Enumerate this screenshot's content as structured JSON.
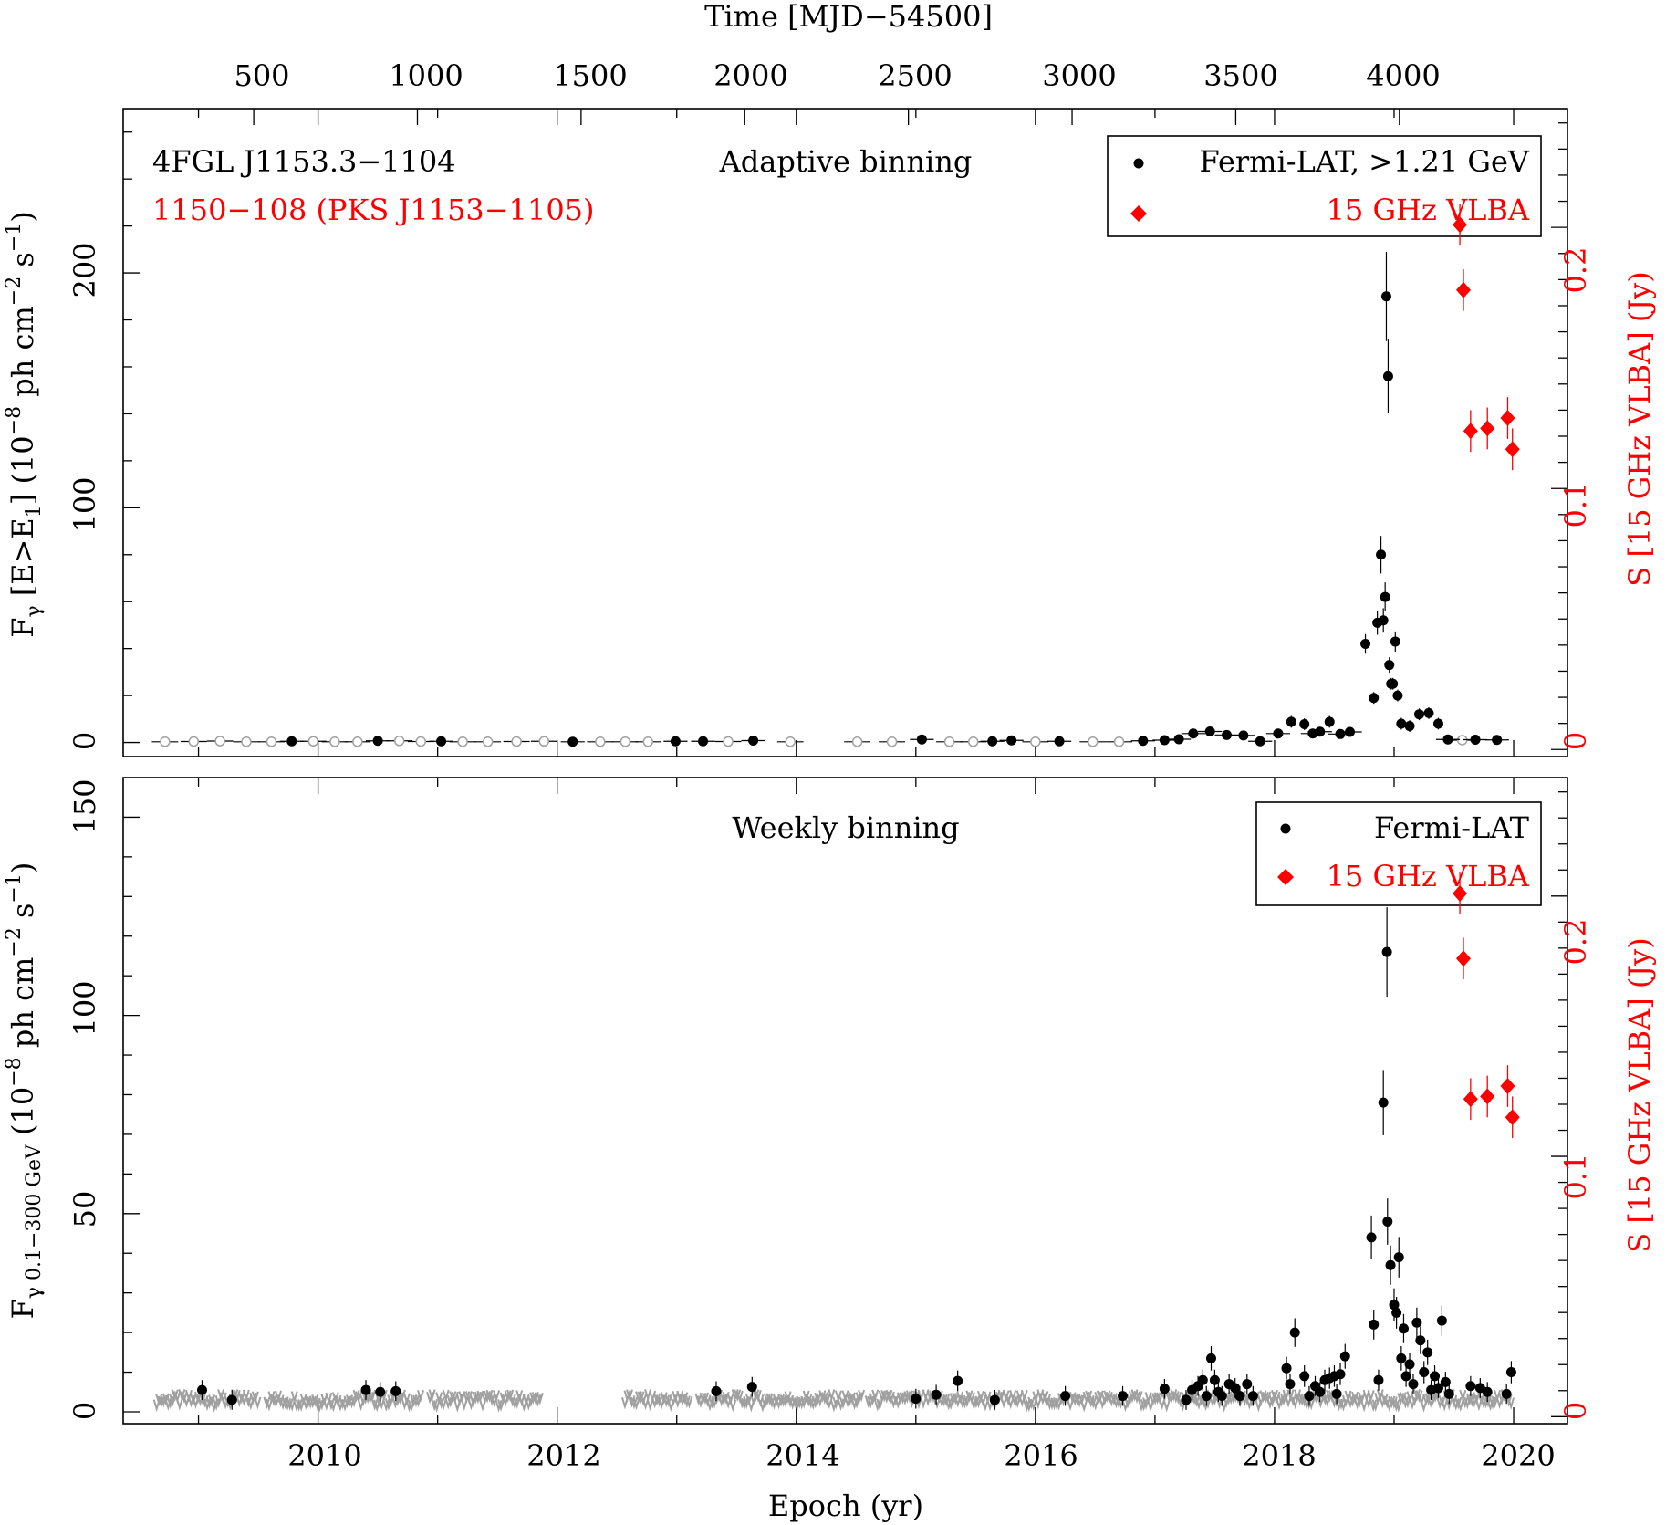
{
  "figure": {
    "top_axis_label": "Time [MJD−54500]",
    "top_ticks": [
      "500",
      "1000",
      "1500",
      "2000",
      "2500",
      "3000",
      "3500",
      "4000"
    ],
    "x_axis_label": "Epoch (yr)",
    "x_ticks": [
      "2010",
      "2012",
      "2014",
      "2016",
      "2018",
      "2020"
    ]
  },
  "colors": {
    "gamma": "#000000",
    "upper_limit": "#a0a0a0",
    "vlba": "#ff0000"
  },
  "chart_data": [
    {
      "type": "scatter",
      "panel": "top",
      "source_name": "4FGL J1153.3−1104",
      "radio_name": "1150−108 (PKS J1153−1105)",
      "binning_label": "Adaptive binning",
      "ylabel_main": "F",
      "ylabel_sub": "γ",
      "ylabel_rest": " [E>E",
      "ylabel_sub2": "1",
      "ylabel_rest2": "] (10",
      "ylabel_sup": "−8",
      "ylabel_rest3": " ph cm",
      "ylabel_sup2": "−2",
      "ylabel_rest4": " s",
      "ylabel_sup3": "−1",
      "ylabel_end": ")",
      "y2label": "S [15 GHz VLBA] (Jy)",
      "xlim": [
        2008.37,
        2020.45
      ],
      "ylim": [
        -6,
        270
      ],
      "y2lim": [
        -0.0027,
        0.2455
      ],
      "y_ticks": [
        "0",
        "100",
        "200"
      ],
      "y2_ticks": [
        "0",
        "0.1",
        "0.2"
      ],
      "legend": [
        "Fermi-LAT, >1.21 GeV",
        "15 GHz VLBA"
      ],
      "series": [
        {
          "name": "Fermi-LAT, >1.21 GeV",
          "x": [
            2009.78,
            2010.5,
            2011.03,
            2012.13,
            2012.99,
            2013.22,
            2013.64,
            2015.05,
            2015.64,
            2015.8,
            2016.2,
            2016.9,
            2017.08,
            2017.2,
            2017.32,
            2017.46,
            2017.6,
            2017.74,
            2017.88,
            2018.03,
            2018.14,
            2018.25,
            2018.32,
            2018.38,
            2018.46,
            2018.55,
            2018.63,
            2018.76,
            2018.83,
            2018.86,
            2018.89,
            2018.91,
            2018.925,
            2018.935,
            2018.95,
            2018.96,
            2018.975,
            2018.99,
            2019.01,
            2019.03,
            2019.06,
            2019.13,
            2019.21,
            2019.29,
            2019.37,
            2019.45,
            2019.68,
            2019.86
          ],
          "y": [
            0.5,
            0.7,
            0.5,
            0.3,
            0.5,
            0.5,
            0.8,
            1.3,
            0.5,
            0.9,
            0.5,
            0.7,
            1.0,
            1.4,
            3.8,
            4.7,
            3.2,
            3.0,
            0.5,
            3.8,
            8.8,
            7.8,
            3.8,
            4.6,
            8.8,
            3.6,
            4.5,
            42,
            19,
            51,
            80,
            52,
            62,
            190,
            156,
            33,
            25,
            25,
            43,
            20,
            8,
            7,
            12,
            12.5,
            8,
            1.3,
            1.2,
            1.1
          ]
        },
        {
          "name": "upper limits",
          "x": [
            2008.72,
            2008.96,
            2009.18,
            2009.4,
            2009.61,
            2009.96,
            2010.14,
            2010.33,
            2010.68,
            2010.86,
            2011.21,
            2011.42,
            2011.66,
            2011.89,
            2012.36,
            2012.57,
            2012.76,
            2013.43,
            2013.95,
            2014.51,
            2014.8,
            2015.28,
            2015.48,
            2016.0,
            2016.48,
            2016.7,
            2019.57
          ],
          "y": [
            0.3,
            0.4,
            0.6,
            0.3,
            0.3,
            0.5,
            0.3,
            0.3,
            0.7,
            0.4,
            0.3,
            0.3,
            0.4,
            0.5,
            0.3,
            0.3,
            0.3,
            0.4,
            0.3,
            0.3,
            0.3,
            0.3,
            0.3,
            0.3,
            0.3,
            0.3,
            1.0
          ]
        },
        {
          "name": "15 GHz VLBA",
          "x": [
            2019.55,
            2019.58,
            2019.64,
            2019.78,
            2019.95,
            2019.99
          ],
          "y": [
            0.201,
            0.176,
            0.122,
            0.123,
            0.127,
            0.115
          ]
        }
      ]
    },
    {
      "type": "scatter",
      "panel": "bottom",
      "binning_label": "Weekly binning",
      "ylabel_main": "F",
      "ylabel_sub": "γ 0.1−300 GeV",
      "ylabel_rest": " (10",
      "ylabel_sup": "−8",
      "ylabel_rest3": " ph cm",
      "ylabel_sup2": "−2",
      "ylabel_rest4": " s",
      "ylabel_sup3": "−1",
      "ylabel_end": ")",
      "y2label": "S [15 GHz VLBA] (Jy)",
      "xlim": [
        2008.37,
        2020.45
      ],
      "ylim": [
        -3,
        160
      ],
      "y2lim": [
        -0.0027,
        0.2455
      ],
      "y_ticks": [
        "0",
        "50",
        "100",
        "150"
      ],
      "y2_ticks": [
        "0",
        "0.1",
        "0.2"
      ],
      "legend": [
        "Fermi-LAT",
        "15 GHz VLBA"
      ],
      "series": [
        {
          "name": "Fermi-LAT",
          "x": [
            2009.03,
            2009.28,
            2010.4,
            2010.52,
            2010.65,
            2013.33,
            2013.63,
            2015.0,
            2015.17,
            2015.35,
            2015.66,
            2016.25,
            2016.73,
            2017.08,
            2017.26,
            2017.31,
            2017.36,
            2017.4,
            2017.43,
            2017.47,
            2017.5,
            2017.53,
            2017.56,
            2017.62,
            2017.67,
            2017.71,
            2017.77,
            2017.82,
            2018.1,
            2018.13,
            2018.17,
            2018.25,
            2018.29,
            2018.34,
            2018.38,
            2018.42,
            2018.46,
            2018.5,
            2018.52,
            2018.55,
            2018.59,
            2018.81,
            2018.83,
            2018.87,
            2018.91,
            2018.94,
            2018.945,
            2018.97,
            2019.0,
            2019.02,
            2019.04,
            2019.06,
            2019.08,
            2019.1,
            2019.13,
            2019.16,
            2019.19,
            2019.22,
            2019.25,
            2019.28,
            2019.31,
            2019.34,
            2019.37,
            2019.4,
            2019.43,
            2019.46,
            2019.64,
            2019.72,
            2019.78,
            2019.94,
            2019.98
          ],
          "y": [
            5.5,
            3,
            5.5,
            5,
            5.2,
            5.2,
            6.3,
            3.3,
            4.3,
            7.8,
            3,
            4,
            4,
            5.8,
            3,
            5.5,
            6.5,
            8,
            4,
            13.5,
            8,
            5,
            4,
            7,
            6,
            4,
            7,
            4,
            11,
            7,
            20,
            9,
            4,
            6.5,
            5,
            8,
            8.5,
            9,
            4.5,
            9.5,
            14,
            44,
            22,
            8,
            78,
            116,
            48,
            37,
            27,
            25,
            39,
            13.5,
            21,
            9,
            12,
            7,
            22.5,
            18,
            10,
            15,
            5.5,
            9,
            6,
            23,
            7.5,
            4.5,
            6.5,
            6,
            5,
            4.5,
            10
          ]
        },
        {
          "name": "15 GHz VLBA",
          "x": [
            2019.55,
            2019.58,
            2019.64,
            2019.78,
            2019.95,
            2019.99
          ],
          "y": [
            0.201,
            0.176,
            0.122,
            0.123,
            0.127,
            0.115
          ]
        }
      ]
    }
  ]
}
